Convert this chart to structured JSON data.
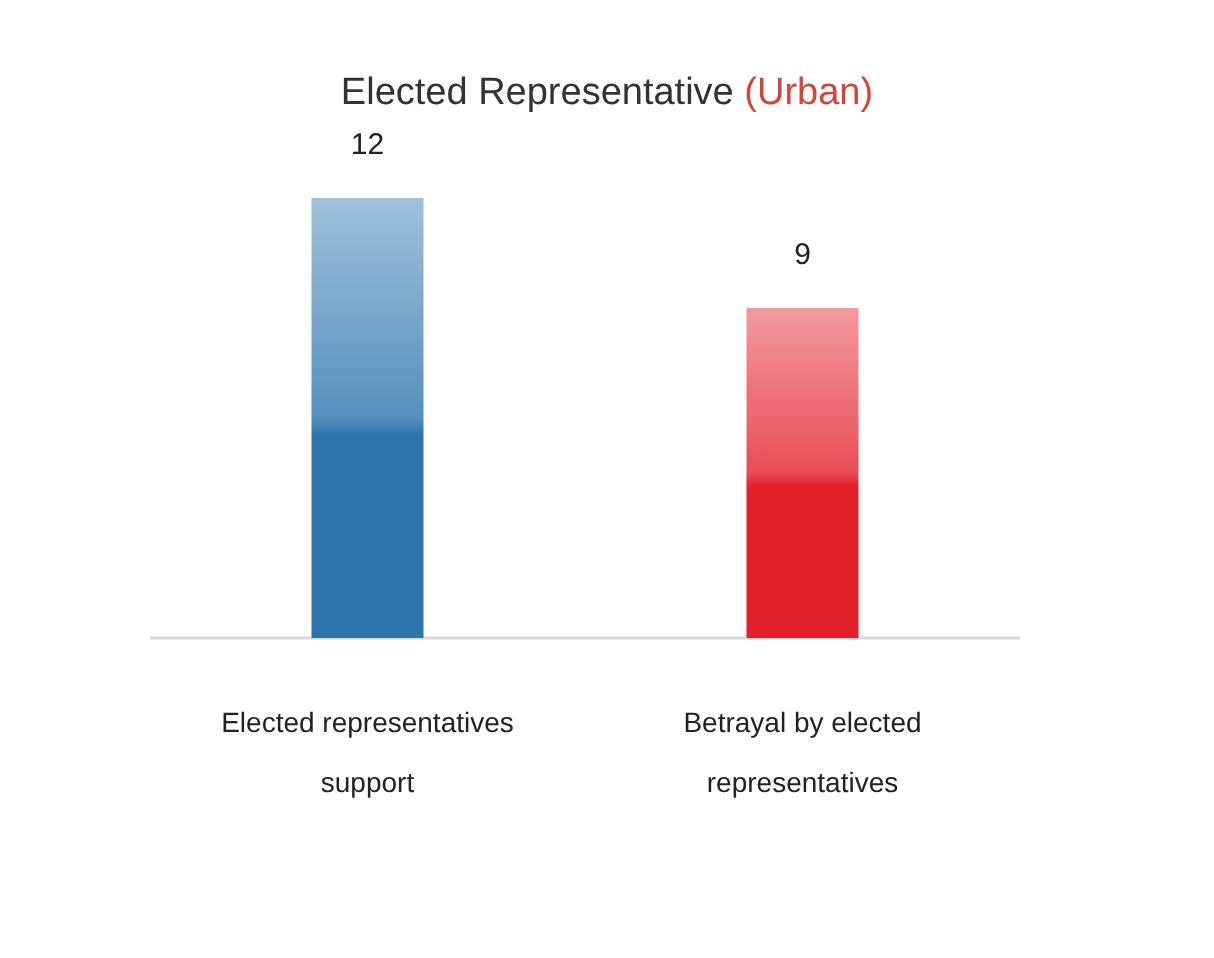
{
  "chart_data": {
    "type": "bar",
    "title": "Elected Representative (Urban)",
    "categories": [
      "Elected representatives support",
      "Betrayal by elected representatives"
    ],
    "values": [
      12,
      9
    ],
    "colors": [
      "#2b74ad",
      "#e2202a"
    ],
    "data_labels": true
  }
}
